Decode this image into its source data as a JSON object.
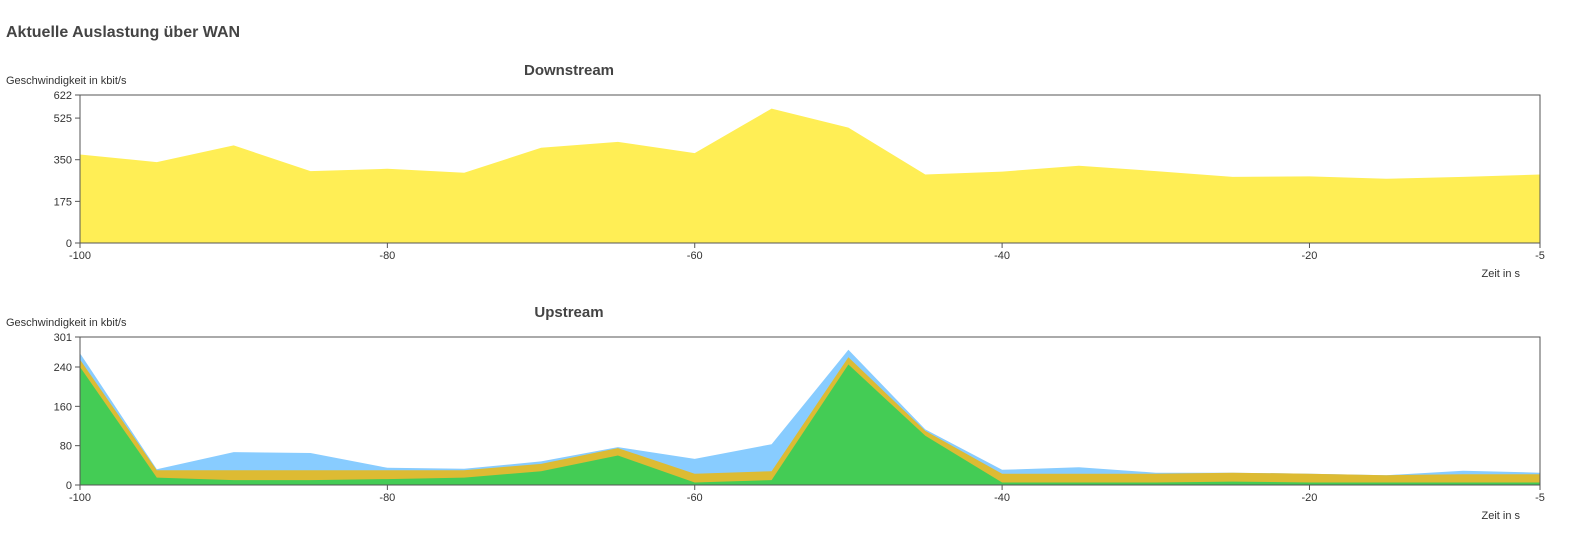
{
  "page": {
    "title": "Aktuelle Auslastung über WAN"
  },
  "chart_data": [
    {
      "type": "area",
      "title": "Downstream",
      "ylabel": "Geschwindigkeit in kbit/s",
      "xlabel": "Zeit in s",
      "xlim": [
        -100,
        -5
      ],
      "ylim": [
        0,
        622
      ],
      "yticks": [
        0,
        175,
        350,
        525,
        622
      ],
      "xticks": [
        -100,
        -80,
        -60,
        -40,
        -20,
        -5
      ],
      "grid": false,
      "legend": "none",
      "x": [
        -100,
        -95,
        -90,
        -85,
        -80,
        -75,
        -70,
        -65,
        -60,
        -55,
        -50,
        -45,
        -40,
        -35,
        -30,
        -25,
        -20,
        -15,
        -10,
        -5
      ],
      "series": [
        {
          "color": "#ffee55",
          "values": [
            372,
            340,
            410,
            302,
            312,
            295,
            400,
            425,
            378,
            565,
            485,
            288,
            300,
            325,
            302,
            278,
            280,
            270,
            278,
            288
          ]
        }
      ]
    },
    {
      "type": "area",
      "stacked": true,
      "title": "Upstream",
      "ylabel": "Geschwindigkeit in kbit/s",
      "xlabel": "Zeit in s",
      "xlim": [
        -100,
        -5
      ],
      "ylim": [
        0,
        301
      ],
      "yticks": [
        0,
        80,
        160,
        240,
        301
      ],
      "xticks": [
        -100,
        -80,
        -60,
        -40,
        -20,
        -5
      ],
      "grid": false,
      "legend": "none",
      "x": [
        -100,
        -95,
        -90,
        -85,
        -80,
        -75,
        -70,
        -65,
        -60,
        -55,
        -50,
        -45,
        -40,
        -35,
        -30,
        -25,
        -20,
        -15,
        -10,
        -5
      ],
      "series": [
        {
          "color": "#44cc55",
          "values": [
            240,
            15,
            10,
            10,
            12,
            15,
            28,
            60,
            5,
            10,
            245,
            100,
            5,
            5,
            5,
            7,
            5,
            5,
            5,
            5
          ]
        },
        {
          "color": "#ddbb33",
          "values": [
            15,
            15,
            20,
            20,
            18,
            15,
            15,
            15,
            18,
            18,
            15,
            10,
            18,
            18,
            18,
            18,
            18,
            15,
            17,
            17
          ]
        },
        {
          "color": "#88ccff",
          "values": [
            13,
            2,
            37,
            35,
            5,
            3,
            5,
            2,
            30,
            55,
            15,
            3,
            8,
            13,
            2,
            0,
            0,
            0,
            7,
            3
          ]
        }
      ]
    }
  ]
}
